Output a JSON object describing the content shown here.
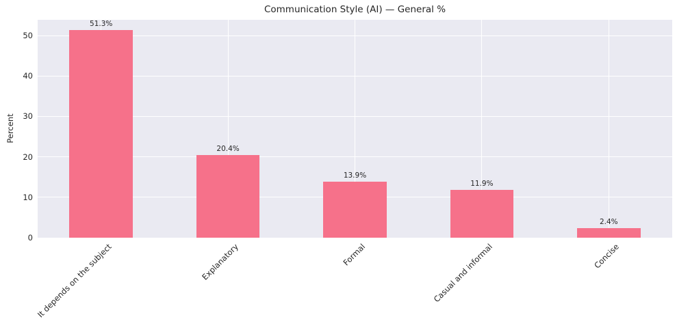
{
  "chart_data": {
    "type": "bar",
    "title": "Communication Style (AI) — General %",
    "xlabel": "",
    "ylabel": "Percent",
    "categories": [
      "It depends on the subject",
      "Explanatory",
      "Formal",
      "Casual and informal",
      "Concise"
    ],
    "values": [
      51.3,
      20.4,
      13.9,
      11.9,
      2.4
    ],
    "value_labels": [
      "51.3%",
      "20.4%",
      "13.9%",
      "11.9%",
      "2.4%"
    ],
    "yticks": [
      0,
      10,
      20,
      30,
      40,
      50
    ],
    "ylim": [
      0,
      53.9
    ],
    "grid": true,
    "legend_position": "none",
    "x_tick_rotation": 45,
    "bar_color": "#f6718a",
    "plot_bg_color": "#eaeaf2",
    "grid_color": "#ffffff",
    "text_color": "#262626",
    "figure_bg_color": "#ffffff"
  }
}
